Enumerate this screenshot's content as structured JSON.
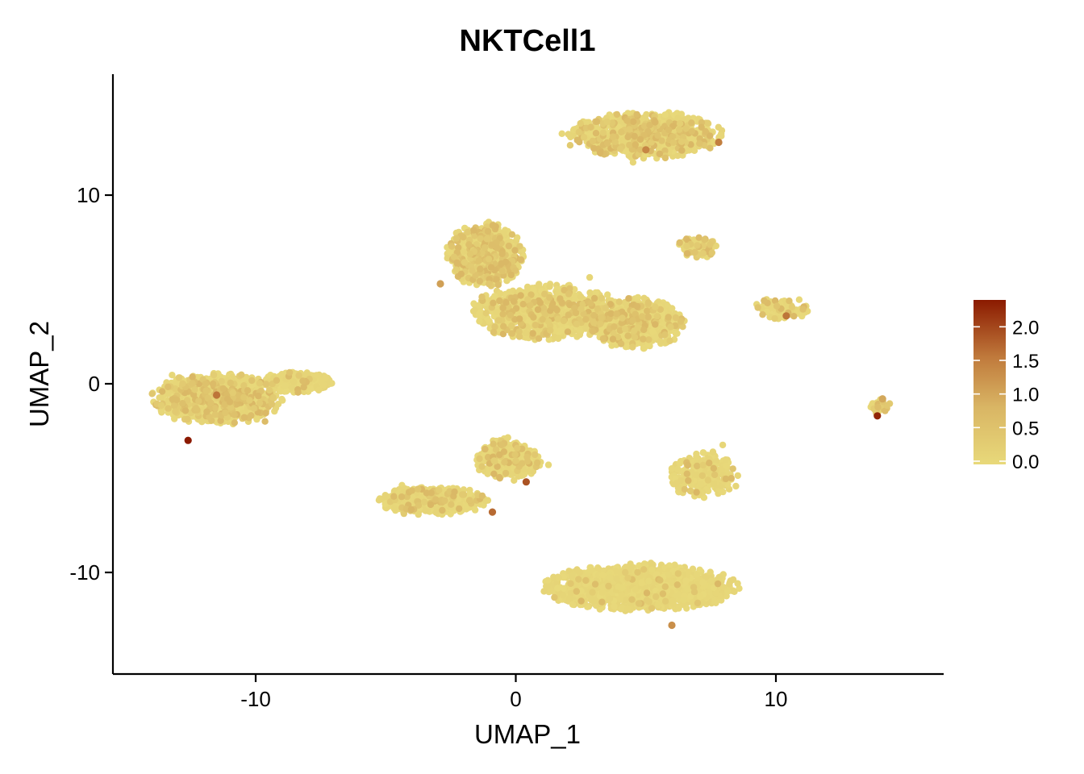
{
  "chart_data": {
    "type": "scatter",
    "title": "NKTCell1",
    "xlabel": "UMAP_1",
    "ylabel": "UMAP_2",
    "xlim": [
      -15.5,
      16.3
    ],
    "ylim": [
      -15.5,
      16.3
    ],
    "x_ticks": [
      -10,
      0,
      10
    ],
    "x_tick_labels": [
      "-10",
      "0",
      "10"
    ],
    "y_ticks": [
      -10,
      0,
      10
    ],
    "y_tick_labels": [
      "-10",
      "0",
      "10"
    ],
    "grid": false,
    "legend_position": "right",
    "color_scale": {
      "low_color": "#E8D97A",
      "mid_color": "#CF9A4A",
      "high_color": "#8B1A00",
      "min": 0,
      "max": 2.4,
      "ticks": [
        0.0,
        0.5,
        1.0,
        1.5,
        2.0
      ],
      "tick_labels": [
        "0.0",
        "0.5",
        "1.0",
        "1.5",
        "2.0"
      ]
    },
    "clusters": [
      {
        "center": [
          5.0,
          13.2
        ],
        "sx": 2.6,
        "sy": 1.1,
        "n": 900,
        "hi_frac": 0.22
      },
      {
        "center": [
          -1.2,
          6.8
        ],
        "sx": 1.3,
        "sy": 1.5,
        "n": 700,
        "hi_frac": 0.25
      },
      {
        "center": [
          1.2,
          3.8
        ],
        "sx": 2.6,
        "sy": 1.3,
        "n": 900,
        "hi_frac": 0.15
      },
      {
        "center": [
          4.6,
          3.2
        ],
        "sx": 1.6,
        "sy": 1.2,
        "n": 700,
        "hi_frac": 0.15
      },
      {
        "center": [
          7.0,
          7.2
        ],
        "sx": 0.7,
        "sy": 0.5,
        "n": 90,
        "hi_frac": 0.25
      },
      {
        "center": [
          10.3,
          4.0
        ],
        "sx": 1.0,
        "sy": 0.5,
        "n": 90,
        "hi_frac": 0.15
      },
      {
        "center": [
          -11.5,
          -0.8
        ],
        "sx": 2.2,
        "sy": 1.2,
        "n": 1100,
        "hi_frac": 0.18
      },
      {
        "center": [
          -8.4,
          0.1
        ],
        "sx": 1.2,
        "sy": 0.5,
        "n": 350,
        "hi_frac": 0.05
      },
      {
        "center": [
          -3.2,
          -6.2
        ],
        "sx": 1.8,
        "sy": 0.7,
        "n": 500,
        "hi_frac": 0.1
      },
      {
        "center": [
          -0.3,
          -4.0
        ],
        "sx": 1.1,
        "sy": 1.0,
        "n": 400,
        "hi_frac": 0.12
      },
      {
        "center": [
          4.8,
          -10.8
        ],
        "sx": 3.3,
        "sy": 1.1,
        "n": 1500,
        "hi_frac": 0.02
      },
      {
        "center": [
          7.2,
          -4.8
        ],
        "sx": 1.2,
        "sy": 1.1,
        "n": 260,
        "hi_frac": 0.05
      },
      {
        "center": [
          14.0,
          -1.2
        ],
        "sx": 0.35,
        "sy": 0.35,
        "n": 40,
        "hi_frac": 0.3
      }
    ],
    "high_points": [
      {
        "x": -12.6,
        "y": -3.0,
        "v": 2.4
      },
      {
        "x": -11.5,
        "y": -0.6,
        "v": 1.6
      },
      {
        "x": 0.4,
        "y": -5.2,
        "v": 1.9
      },
      {
        "x": -0.9,
        "y": -6.8,
        "v": 1.7
      },
      {
        "x": 5.0,
        "y": 12.4,
        "v": 1.4
      },
      {
        "x": 7.8,
        "y": 12.8,
        "v": 1.5
      },
      {
        "x": 10.4,
        "y": 3.6,
        "v": 1.6
      },
      {
        "x": 13.9,
        "y": -1.7,
        "v": 2.3
      },
      {
        "x": 14.1,
        "y": -0.8,
        "v": 1.0
      },
      {
        "x": -2.9,
        "y": 5.3,
        "v": 1.1
      },
      {
        "x": 6.0,
        "y": -12.8,
        "v": 1.3
      }
    ]
  }
}
